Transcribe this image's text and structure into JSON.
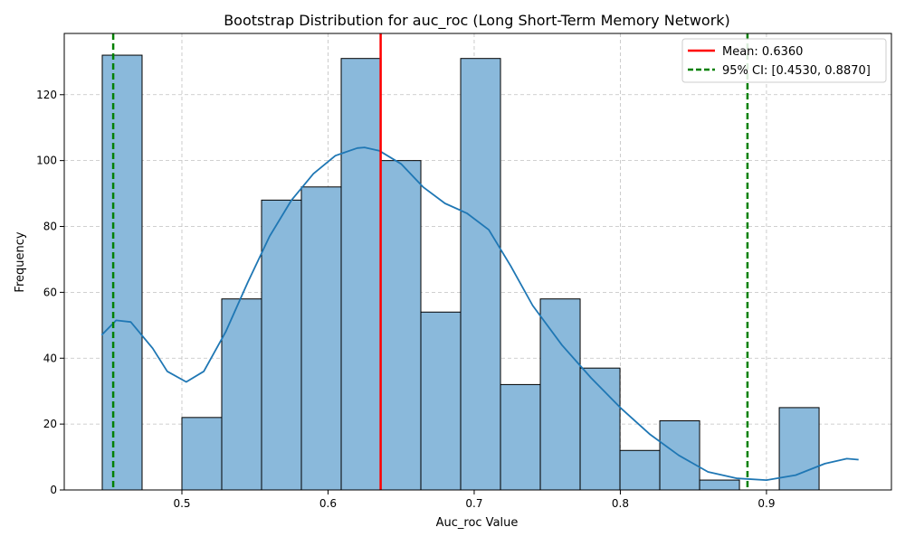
{
  "chart_data": {
    "type": "bar",
    "title": "Bootstrap Distribution for auc_roc (Long Short-Term Memory Network)",
    "xlabel": "Auc_roc Value",
    "ylabel": "Frequency",
    "xlim": [
      0.4195,
      0.9855
    ],
    "ylim": [
      0,
      138.6
    ],
    "xticks": [
      0.5,
      0.6,
      0.7,
      0.8,
      0.9
    ],
    "xtick_labels": [
      "0.5",
      "0.6",
      "0.7",
      "0.8",
      "0.9"
    ],
    "yticks": [
      0,
      20,
      40,
      60,
      80,
      100,
      120
    ],
    "ytick_labels": [
      "0",
      "20",
      "40",
      "60",
      "80",
      "100",
      "120"
    ],
    "grid": true,
    "bins": {
      "start": 0.4455,
      "width": 0.02725,
      "counts": [
        132,
        0,
        22,
        58,
        88,
        92,
        131,
        100,
        54,
        131,
        32,
        58,
        37,
        12,
        21,
        3,
        0,
        25
      ]
    },
    "kde": {
      "x": [
        0.445,
        0.455,
        0.465,
        0.48,
        0.49,
        0.503,
        0.515,
        0.53,
        0.545,
        0.56,
        0.575,
        0.59,
        0.605,
        0.62,
        0.625,
        0.635,
        0.65,
        0.665,
        0.68,
        0.695,
        0.71,
        0.725,
        0.74,
        0.76,
        0.78,
        0.8,
        0.82,
        0.84,
        0.86,
        0.88,
        0.9,
        0.92,
        0.94,
        0.955,
        0.963
      ],
      "y": [
        47,
        51.5,
        51,
        43,
        36,
        32.8,
        36,
        48,
        63,
        77,
        88,
        96,
        101.5,
        103.8,
        104,
        103,
        99,
        92,
        87,
        84,
        79,
        68,
        56,
        44,
        34,
        25,
        17,
        10.5,
        5.5,
        3.5,
        3,
        4.5,
        8,
        9.5,
        9.2
      ]
    },
    "series": [
      {
        "name": "Mean: 0.6360",
        "type": "vline",
        "x": 0.636,
        "color": "#ff0000",
        "style": "solid"
      },
      {
        "name": "95% CI: [0.4530, 0.8870]",
        "type": "vline",
        "x": [
          0.453,
          0.887
        ],
        "color": "#008000",
        "style": "dashed"
      }
    ],
    "legend_position": "top-right",
    "colors": {
      "bar_fill": "#8ab9db",
      "bar_edge": "#000000",
      "kde": "#1f77b4",
      "grid": "#c0c0c0"
    }
  }
}
